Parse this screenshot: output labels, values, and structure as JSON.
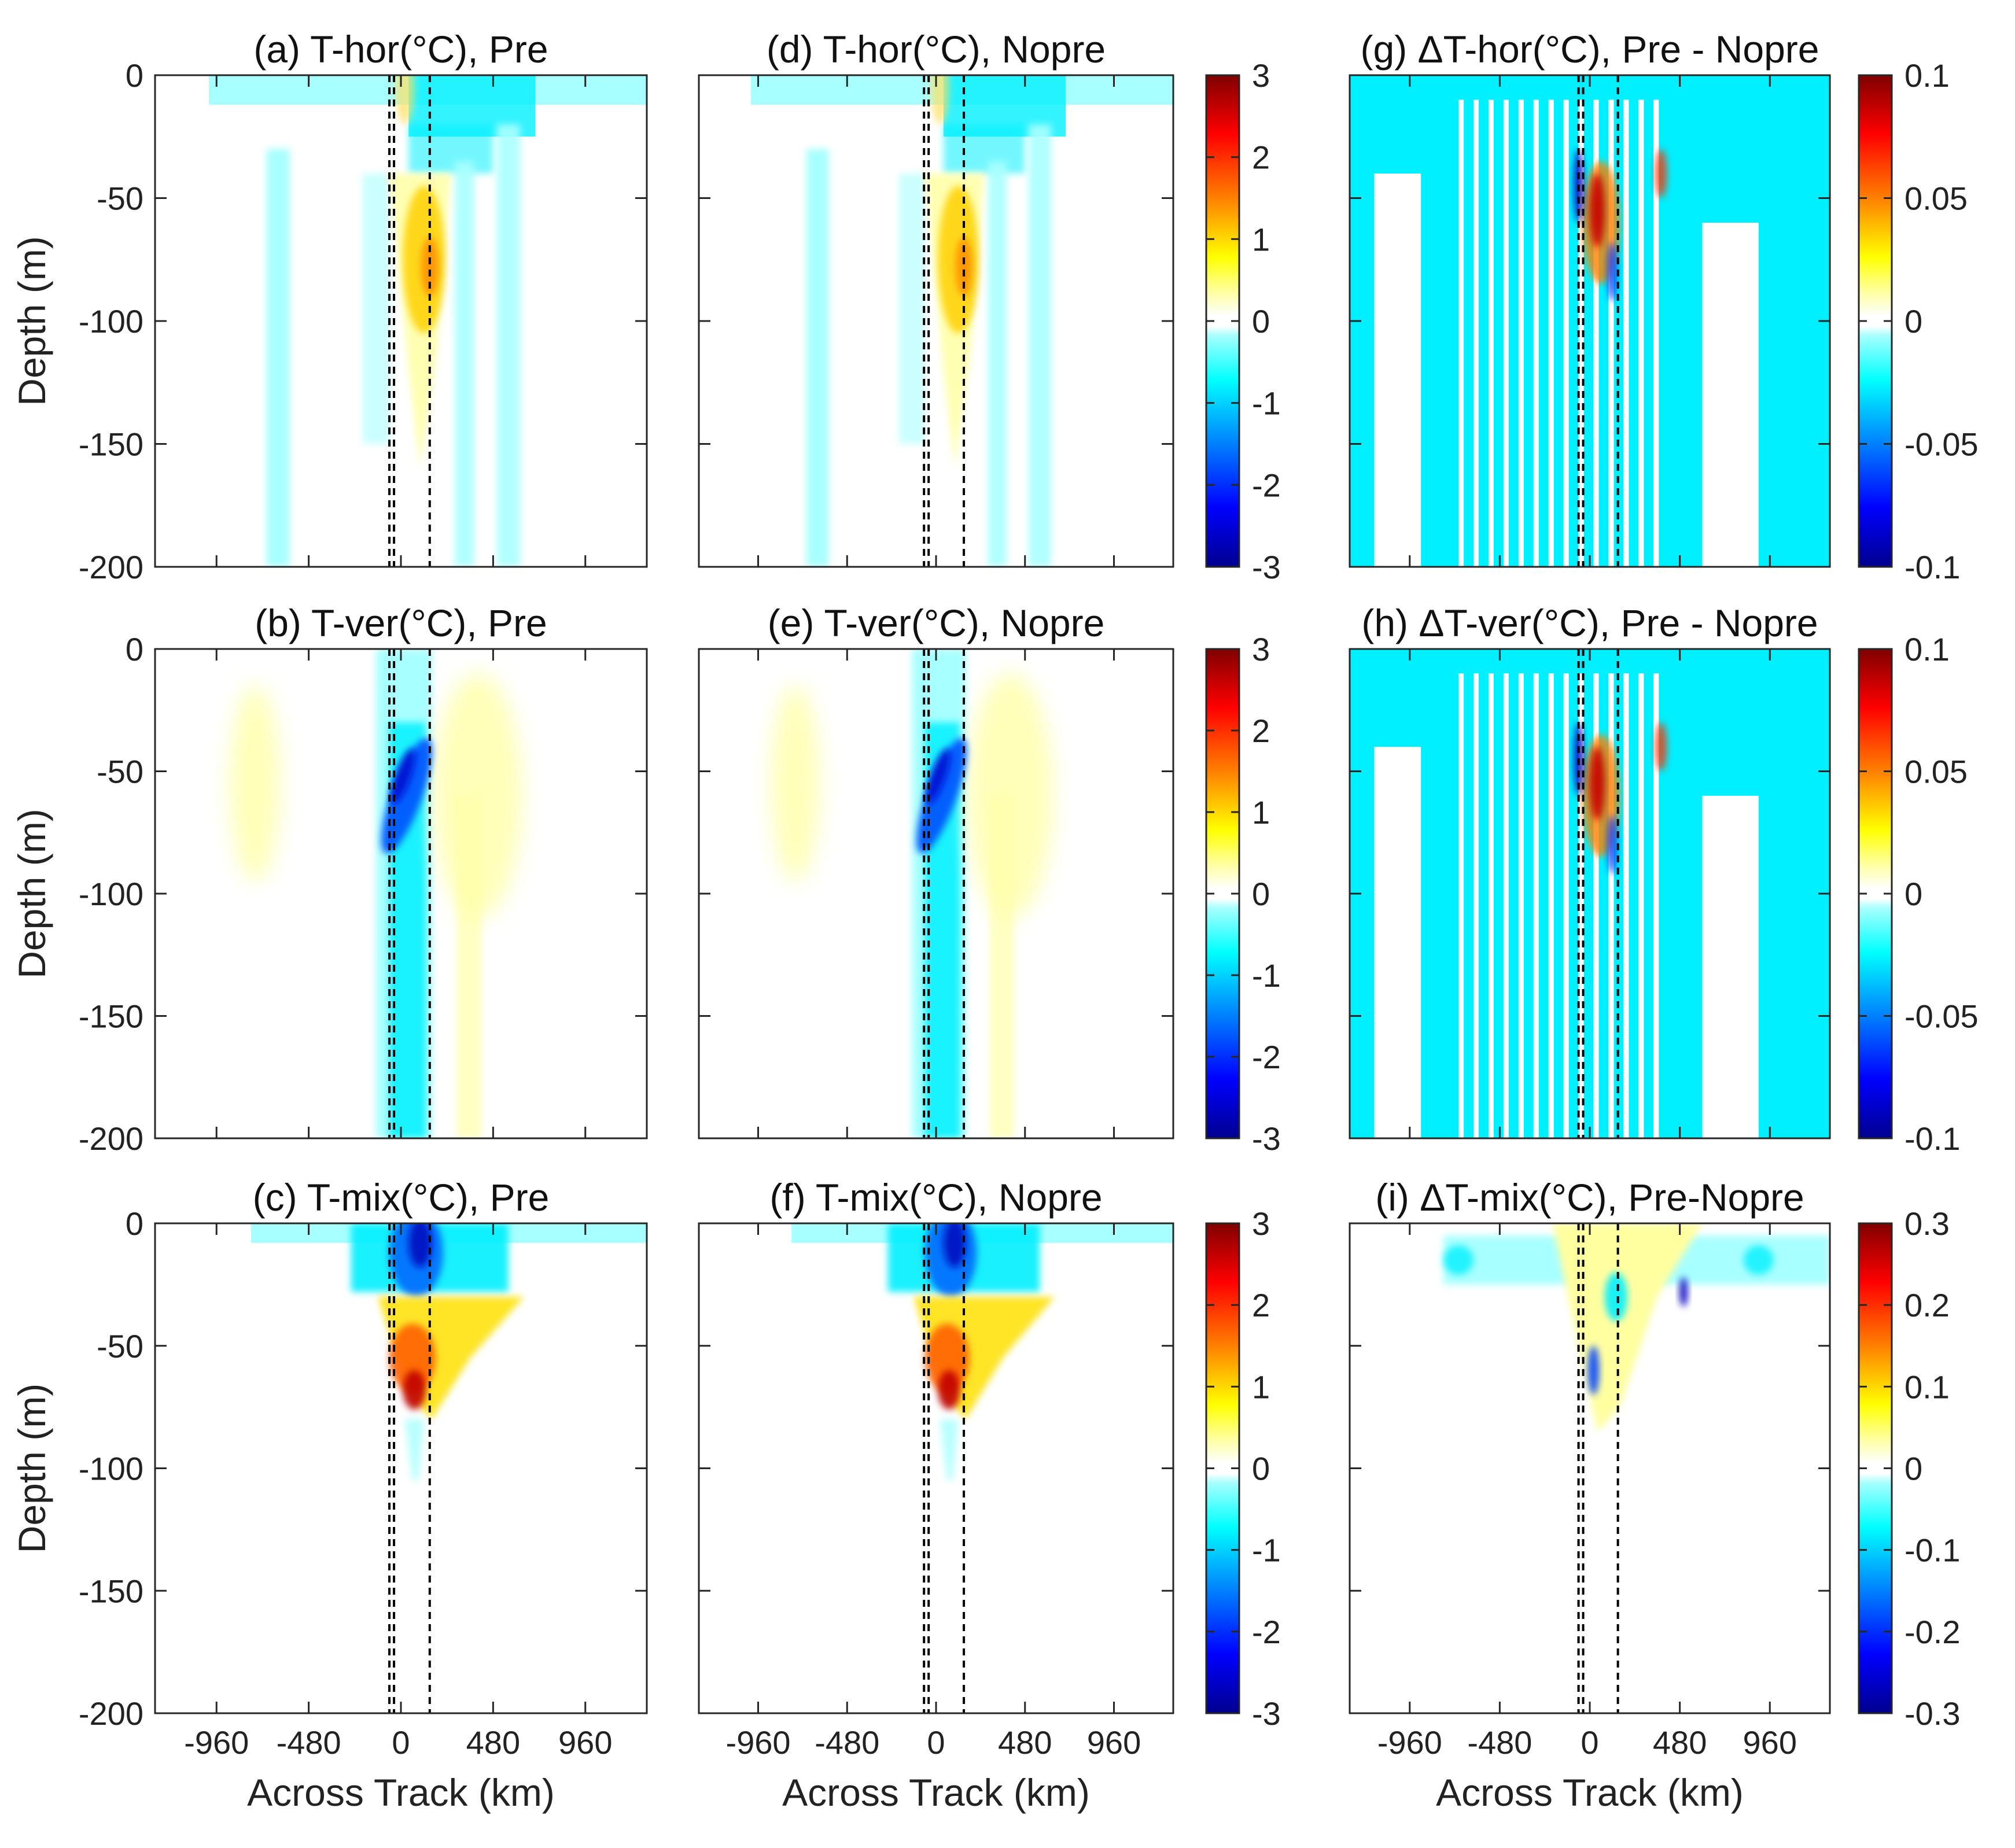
{
  "chart_data": {
    "type": "heatmap",
    "description_units": {
      "x": "Across Track (km)",
      "y": "Depth (m)"
    },
    "x_range": [
      -1280,
      1280
    ],
    "y_range": [
      -200,
      0
    ],
    "x_ticks": [
      -960,
      -480,
      0,
      480,
      960
    ],
    "x_tick_labels": [
      "-960",
      "-480",
      "0",
      "480",
      "960"
    ],
    "y_ticks": [
      0,
      -50,
      -100,
      -150,
      -200
    ],
    "y_tick_labels": [
      "0",
      "-50",
      "-100",
      "-150",
      "-200"
    ],
    "xlabel": "Across Track (km)",
    "ylabel": "Depth (m)",
    "track_lines_km": {
      "pre": [
        -60,
        150
      ],
      "nopre": [
        -40,
        150
      ]
    },
    "panels": [
      {
        "id": "a",
        "title": "(a) T-hor(°C), Pre",
        "row": 0,
        "col": 0,
        "kind": "hor",
        "diff": false
      },
      {
        "id": "d",
        "title": "(d) T-hor(°C), Nopre",
        "row": 0,
        "col": 1,
        "kind": "hor",
        "diff": false
      },
      {
        "id": "g",
        "title": "(g) ΔT-hor(°C), Pre - Nopre",
        "row": 0,
        "col": 2,
        "kind": "hor",
        "diff": true
      },
      {
        "id": "b",
        "title": "(b) T-ver(°C), Pre",
        "row": 1,
        "col": 0,
        "kind": "ver",
        "diff": false
      },
      {
        "id": "e",
        "title": "(e) T-ver(°C), Nopre",
        "row": 1,
        "col": 1,
        "kind": "ver",
        "diff": false
      },
      {
        "id": "h",
        "title": "(h) ΔT-ver(°C), Pre - Nopre",
        "row": 1,
        "col": 2,
        "kind": "ver",
        "diff": true
      },
      {
        "id": "c",
        "title": "(c) T-mix(°C), Pre",
        "row": 2,
        "col": 0,
        "kind": "mix",
        "diff": false
      },
      {
        "id": "f",
        "title": "(f) T-mix(°C), Nopre",
        "row": 2,
        "col": 1,
        "kind": "mix",
        "diff": false
      },
      {
        "id": "i",
        "title": "(i) ΔT-mix(°C), Pre-Nopre",
        "row": 2,
        "col": 2,
        "kind": "mix",
        "diff": true
      }
    ],
    "colorbars": [
      {
        "id": "cb-left-0",
        "row": 0,
        "side": "left",
        "range": [
          -3,
          3
        ],
        "labels": [
          "3",
          "2",
          "1",
          "0",
          "-1",
          "-2",
          "-3"
        ]
      },
      {
        "id": "cb-right-0",
        "row": 0,
        "side": "right",
        "range": [
          -0.1,
          0.1
        ],
        "labels": [
          "0.1",
          "0.05",
          "0",
          "-0.05",
          "-0.1"
        ]
      },
      {
        "id": "cb-left-1",
        "row": 1,
        "side": "left",
        "range": [
          -3,
          3
        ],
        "labels": [
          "3",
          "2",
          "1",
          "0",
          "-1",
          "-2",
          "-3"
        ]
      },
      {
        "id": "cb-right-1",
        "row": 1,
        "side": "right",
        "range": [
          -0.1,
          0.1
        ],
        "labels": [
          "0.1",
          "0.05",
          "0",
          "-0.05",
          "-0.1"
        ]
      },
      {
        "id": "cb-left-2",
        "row": 2,
        "side": "left",
        "range": [
          -3,
          3
        ],
        "labels": [
          "3",
          "2",
          "1",
          "0",
          "-1",
          "-2",
          "-3"
        ]
      },
      {
        "id": "cb-right-2",
        "row": 2,
        "side": "right",
        "range": [
          -0.3,
          0.3
        ],
        "labels": [
          "0.3",
          "0.2",
          "0.1",
          "0",
          "-0.1",
          "-0.2",
          "-0.3"
        ]
      }
    ],
    "colormap": "jet-like with white band around 0"
  }
}
